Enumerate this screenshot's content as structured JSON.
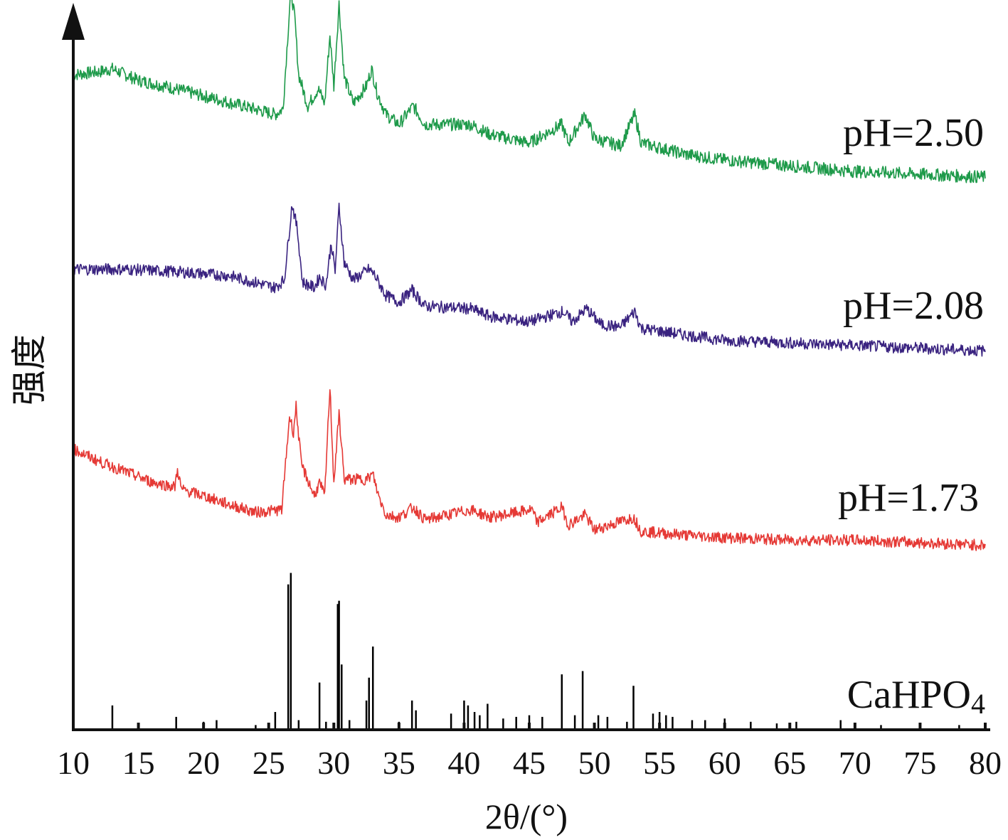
{
  "chart_data": {
    "type": "line",
    "xlabel": "2θ/(°)",
    "ylabel": "强度",
    "xlim": [
      10,
      80
    ],
    "x_ticks": [
      10,
      15,
      20,
      25,
      30,
      35,
      40,
      45,
      50,
      55,
      60,
      65,
      70,
      75,
      80
    ],
    "y_ticks_shown": false,
    "legend": "labels at right end of each trace",
    "series": [
      {
        "name": "pH=2.50",
        "color": "#1e9a4a",
        "points": [
          [
            10,
            0.9
          ],
          [
            12,
            0.92
          ],
          [
            13,
            0.94
          ],
          [
            15,
            0.86
          ],
          [
            17,
            0.82
          ],
          [
            20,
            0.75
          ],
          [
            23,
            0.68
          ],
          [
            25.5,
            0.62
          ],
          [
            26.1,
            0.66
          ],
          [
            26.7,
            1.5
          ],
          [
            27.0,
            1.3
          ],
          [
            27.3,
            0.9
          ],
          [
            28,
            0.68
          ],
          [
            28.8,
            0.8
          ],
          [
            29.3,
            0.7
          ],
          [
            29.7,
            1.18
          ],
          [
            30.0,
            0.82
          ],
          [
            30.4,
            1.4
          ],
          [
            30.8,
            0.88
          ],
          [
            31.5,
            0.7
          ],
          [
            32.5,
            0.82
          ],
          [
            32.9,
            0.94
          ],
          [
            33.3,
            0.78
          ],
          [
            34,
            0.62
          ],
          [
            35,
            0.55
          ],
          [
            36.1,
            0.68
          ],
          [
            37,
            0.55
          ],
          [
            40.5,
            0.55
          ],
          [
            42,
            0.48
          ],
          [
            45,
            0.42
          ],
          [
            47.5,
            0.55
          ],
          [
            48,
            0.42
          ],
          [
            49.3,
            0.62
          ],
          [
            50,
            0.45
          ],
          [
            52,
            0.4
          ],
          [
            53.1,
            0.62
          ],
          [
            53.6,
            0.42
          ],
          [
            57,
            0.34
          ],
          [
            60,
            0.3
          ],
          [
            65,
            0.26
          ],
          [
            70,
            0.22
          ],
          [
            75,
            0.2
          ],
          [
            80,
            0.18
          ]
        ]
      },
      {
        "name": "pH=2.08",
        "color": "#3a2380",
        "points": [
          [
            10,
            0.9
          ],
          [
            14,
            0.9
          ],
          [
            18,
            0.88
          ],
          [
            22,
            0.85
          ],
          [
            25.5,
            0.76
          ],
          [
            26.2,
            0.82
          ],
          [
            26.8,
            1.4
          ],
          [
            27.2,
            1.2
          ],
          [
            27.6,
            0.8
          ],
          [
            28.5,
            0.76
          ],
          [
            28.9,
            0.84
          ],
          [
            29.4,
            0.78
          ],
          [
            29.8,
            1.1
          ],
          [
            30.1,
            0.88
          ],
          [
            30.4,
            1.38
          ],
          [
            30.8,
            0.95
          ],
          [
            31.5,
            0.82
          ],
          [
            32.7,
            0.9
          ],
          [
            33.1,
            0.86
          ],
          [
            34,
            0.7
          ],
          [
            35,
            0.65
          ],
          [
            36.0,
            0.74
          ],
          [
            37,
            0.62
          ],
          [
            40.5,
            0.6
          ],
          [
            42,
            0.54
          ],
          [
            45,
            0.5
          ],
          [
            47.6,
            0.58
          ],
          [
            48.3,
            0.5
          ],
          [
            49.4,
            0.6
          ],
          [
            50.5,
            0.48
          ],
          [
            52,
            0.46
          ],
          [
            53.1,
            0.58
          ],
          [
            53.6,
            0.45
          ],
          [
            57,
            0.4
          ],
          [
            60,
            0.36
          ],
          [
            65,
            0.34
          ],
          [
            70,
            0.32
          ],
          [
            75,
            0.3
          ],
          [
            80,
            0.28
          ]
        ]
      },
      {
        "name": "pH=1.73",
        "color": "#e53935",
        "points": [
          [
            10,
            0.92
          ],
          [
            12,
            0.82
          ],
          [
            14,
            0.74
          ],
          [
            16,
            0.66
          ],
          [
            17.8,
            0.62
          ],
          [
            18.0,
            0.76
          ],
          [
            18.3,
            0.6
          ],
          [
            20,
            0.55
          ],
          [
            22,
            0.48
          ],
          [
            24,
            0.42
          ],
          [
            26,
            0.44
          ],
          [
            26.6,
            1.18
          ],
          [
            26.9,
            1.05
          ],
          [
            27.1,
            1.26
          ],
          [
            27.5,
            0.8
          ],
          [
            28.5,
            0.55
          ],
          [
            28.9,
            0.65
          ],
          [
            29.3,
            0.55
          ],
          [
            29.7,
            1.42
          ],
          [
            30.0,
            0.65
          ],
          [
            30.4,
            1.2
          ],
          [
            30.8,
            0.68
          ],
          [
            32.5,
            0.68
          ],
          [
            33.0,
            0.72
          ],
          [
            33.4,
            0.56
          ],
          [
            34,
            0.4
          ],
          [
            35,
            0.38
          ],
          [
            36.1,
            0.46
          ],
          [
            37,
            0.36
          ],
          [
            40.5,
            0.44
          ],
          [
            42,
            0.38
          ],
          [
            45.2,
            0.44
          ],
          [
            45.6,
            0.34
          ],
          [
            47.5,
            0.46
          ],
          [
            48,
            0.32
          ],
          [
            49.3,
            0.4
          ],
          [
            50,
            0.28
          ],
          [
            53.0,
            0.38
          ],
          [
            53.6,
            0.27
          ],
          [
            57,
            0.24
          ],
          [
            60,
            0.22
          ],
          [
            65,
            0.2
          ],
          [
            70,
            0.2
          ],
          [
            75,
            0.18
          ],
          [
            80,
            0.16
          ]
        ]
      },
      {
        "name": "CaHPO4",
        "color": "#000000",
        "type": "stick",
        "sticks": [
          [
            13.0,
            0.14
          ],
          [
            15.0,
            0.03
          ],
          [
            17.9,
            0.07
          ],
          [
            20.0,
            0.04
          ],
          [
            21.0,
            0.05
          ],
          [
            24.0,
            0.02
          ],
          [
            25.5,
            0.1
          ],
          [
            26.5,
            0.88
          ],
          [
            26.7,
            0.95
          ],
          [
            27.3,
            0.05
          ],
          [
            28.9,
            0.28
          ],
          [
            29.4,
            0.04
          ],
          [
            30.3,
            0.76
          ],
          [
            30.4,
            0.78
          ],
          [
            30.6,
            0.39
          ],
          [
            31.2,
            0.05
          ],
          [
            32.5,
            0.17
          ],
          [
            32.7,
            0.31
          ],
          [
            33.0,
            0.5
          ],
          [
            35.0,
            0.04
          ],
          [
            36.0,
            0.17
          ],
          [
            36.3,
            0.11
          ],
          [
            39.0,
            0.09
          ],
          [
            40.0,
            0.17
          ],
          [
            40.3,
            0.14
          ],
          [
            40.8,
            0.1
          ],
          [
            41.2,
            0.08
          ],
          [
            41.8,
            0.15
          ],
          [
            43.0,
            0.06
          ],
          [
            44.0,
            0.07
          ],
          [
            45.0,
            0.08
          ],
          [
            46.0,
            0.07
          ],
          [
            47.5,
            0.33
          ],
          [
            48.5,
            0.08
          ],
          [
            49.1,
            0.35
          ],
          [
            50.3,
            0.08
          ],
          [
            51.0,
            0.07
          ],
          [
            52.5,
            0.04
          ],
          [
            53.0,
            0.26
          ],
          [
            54.5,
            0.09
          ],
          [
            55.0,
            0.1
          ],
          [
            55.5,
            0.08
          ],
          [
            56.0,
            0.07
          ],
          [
            57.5,
            0.05
          ],
          [
            58.5,
            0.05
          ],
          [
            60.0,
            0.06
          ],
          [
            62.0,
            0.04
          ],
          [
            64.0,
            0.03
          ],
          [
            65.5,
            0.04
          ],
          [
            68.9,
            0.05
          ],
          [
            70.0,
            0.03
          ],
          [
            72.0,
            0.02
          ],
          [
            75.0,
            0.02
          ],
          [
            78.0,
            0.02
          ]
        ]
      }
    ],
    "labels": {
      "s1": "pH=2.50",
      "s2": "pH=2.08",
      "s3": "pH=1.73",
      "s4_main": "CaHPO",
      "s4_sub": "4"
    }
  }
}
